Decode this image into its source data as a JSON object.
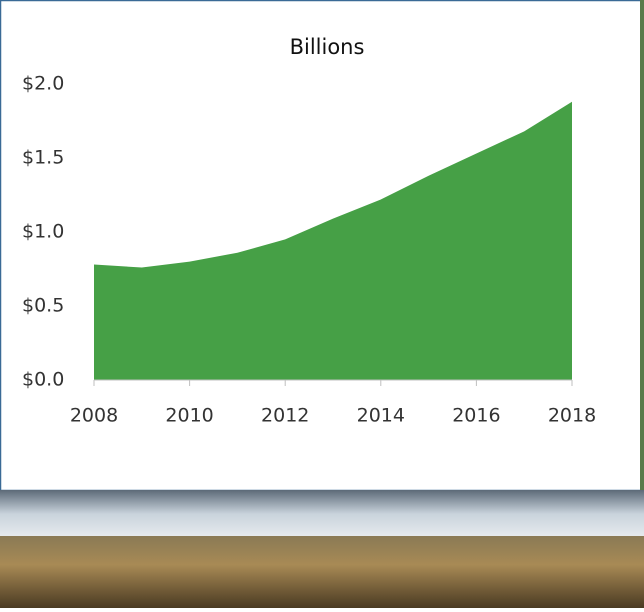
{
  "chart_data": {
    "type": "area",
    "title": "Billions",
    "x": [
      2008,
      2009,
      2010,
      2011,
      2012,
      2013,
      2014,
      2015,
      2016,
      2017,
      2018
    ],
    "values": [
      0.78,
      0.76,
      0.8,
      0.86,
      0.95,
      1.09,
      1.22,
      1.38,
      1.53,
      1.68,
      1.88
    ],
    "color": "#46a046",
    "xlim": [
      2008,
      2018
    ],
    "xticks": [
      2008,
      2010,
      2012,
      2014,
      2016,
      2018
    ],
    "ylim": [
      0,
      2.0
    ],
    "yticks": [
      {
        "value": 0,
        "label": "$0.0"
      },
      {
        "value": 0.5,
        "label": "$0.5"
      },
      {
        "value": 1.0,
        "label": "$1.0"
      },
      {
        "value": 1.5,
        "label": "$1.5"
      },
      {
        "value": 2.0,
        "label": "$2.0"
      }
    ],
    "grid": false
  }
}
